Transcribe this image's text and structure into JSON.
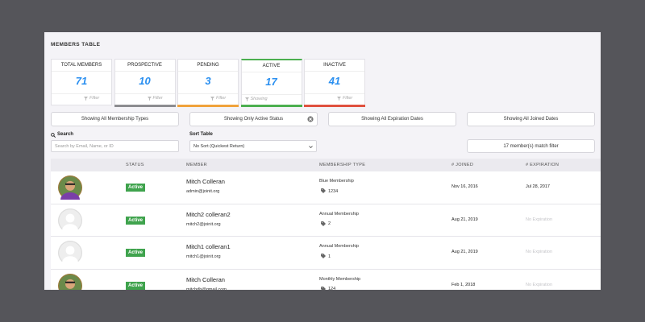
{
  "header": {
    "title": "MEMBERS TABLE"
  },
  "cards": [
    {
      "label": "TOTAL MEMBERS",
      "value": "71",
      "footer": "Filter",
      "color": "#ffffff",
      "active": false
    },
    {
      "label": "PROSPECTIVE",
      "value": "10",
      "footer": "Filter",
      "color": "#8c8c90",
      "active": false
    },
    {
      "label": "PENDING",
      "value": "3",
      "footer": "Filter",
      "color": "#f0a23b",
      "active": false
    },
    {
      "label": "ACTIVE",
      "value": "17",
      "footer": "Showing",
      "color": "#4caf50",
      "active": true
    },
    {
      "label": "INACTIVE",
      "value": "41",
      "footer": "Filter",
      "color": "#e0513f",
      "active": false
    }
  ],
  "filters": [
    "Showing All Membership Types",
    "Showing Only Active Status",
    "Showing All Expiration Dates",
    "Showing All Joined Dates"
  ],
  "search": {
    "label": "Search",
    "placeholder": "Search by Email, Name, or ID"
  },
  "sort": {
    "label": "Sort Table",
    "value": "No Sort (Quickest Return)"
  },
  "match": "17 member(s) match filter",
  "table": {
    "columns": [
      "",
      "STATUS",
      "MEMBER",
      "MEMBERSHIP TYPE",
      "# JOINED",
      "# EXPIRATION"
    ],
    "rows": [
      {
        "has_photo": true,
        "status": "Active",
        "name": "Mitch Colleran",
        "email": "admin@joinit.org",
        "type": "Blue Membership",
        "tag": "1234",
        "joined": "Nov 16, 2016",
        "expiration": "Jul 28, 2017"
      },
      {
        "has_photo": false,
        "status": "Active",
        "name": "Mitch2 colleran2",
        "email": "mitch2@joinit.org",
        "type": "Annual Membership",
        "tag": "2",
        "joined": "Aug 21, 2019",
        "expiration": "No Expiration"
      },
      {
        "has_photo": false,
        "status": "Active",
        "name": "Mitch1 colleran1",
        "email": "mitch1@joinit.org",
        "type": "Annual Membership",
        "tag": "1",
        "joined": "Aug 21, 2019",
        "expiration": "No Expiration"
      },
      {
        "has_photo": true,
        "status": "Active",
        "name": "Mitch Colleran",
        "email": "mitchdb@gmail.com",
        "type": "Monthly Membership",
        "tag": "124",
        "joined": "Feb 1, 2018",
        "expiration": "No Expiration"
      }
    ]
  }
}
